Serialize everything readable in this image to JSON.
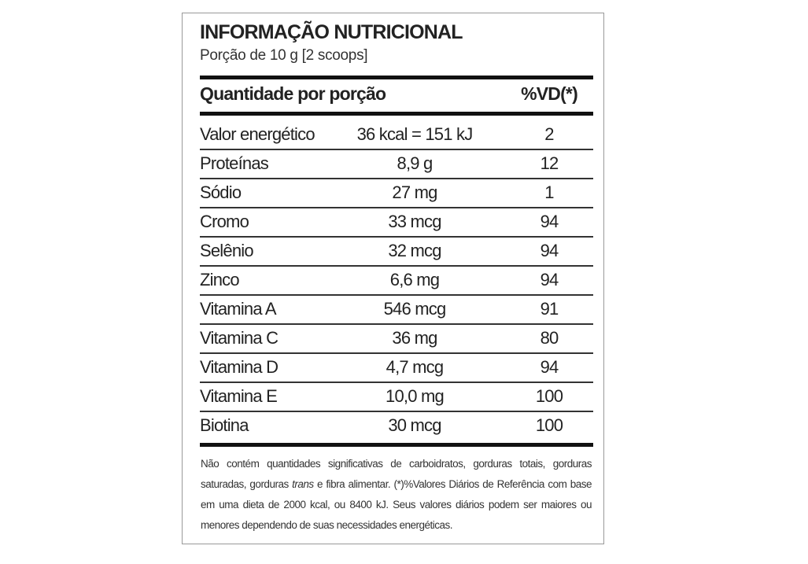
{
  "header": {
    "title": "INFORMAÇÃO NUTRICIONAL",
    "subtitle": "Porção de 10 g  [2 scoops]"
  },
  "table": {
    "columns": [
      "Quantidade por porção",
      "%VD(*)"
    ],
    "rows": [
      [
        "Valor energético",
        "36 kcal = 151 kJ",
        "2"
      ],
      [
        "Proteínas",
        "8,9 g",
        "12"
      ],
      [
        "Sódio",
        "27 mg",
        "1"
      ],
      [
        "Cromo",
        "33 mcg",
        "94"
      ],
      [
        "Selênio",
        "32 mcg",
        "94"
      ],
      [
        "Zinco",
        "6,6 mg",
        "94"
      ],
      [
        "Vitamina A",
        "546 mcg",
        "91"
      ],
      [
        "Vitamina C",
        "36 mg",
        "80"
      ],
      [
        "Vitamina D",
        "4,7 mcg",
        "94"
      ],
      [
        "Vitamina E",
        "10,0 mg",
        "100"
      ],
      [
        "Biotina",
        "30 mcg",
        "100"
      ]
    ]
  },
  "footnote": [
    "Não contém quantidades significativas de carboidratos, gorduras totais, gorduras saturadas, gorduras ",
    "trans",
    " e fibra alimentar. (*)%Valores Diários de Referência com base em uma dieta de 2000 kcal, ou 8400 kJ. Seus valores diários podem ser maiores ou menores dependendo de suas necessidades energéticas."
  ]
}
